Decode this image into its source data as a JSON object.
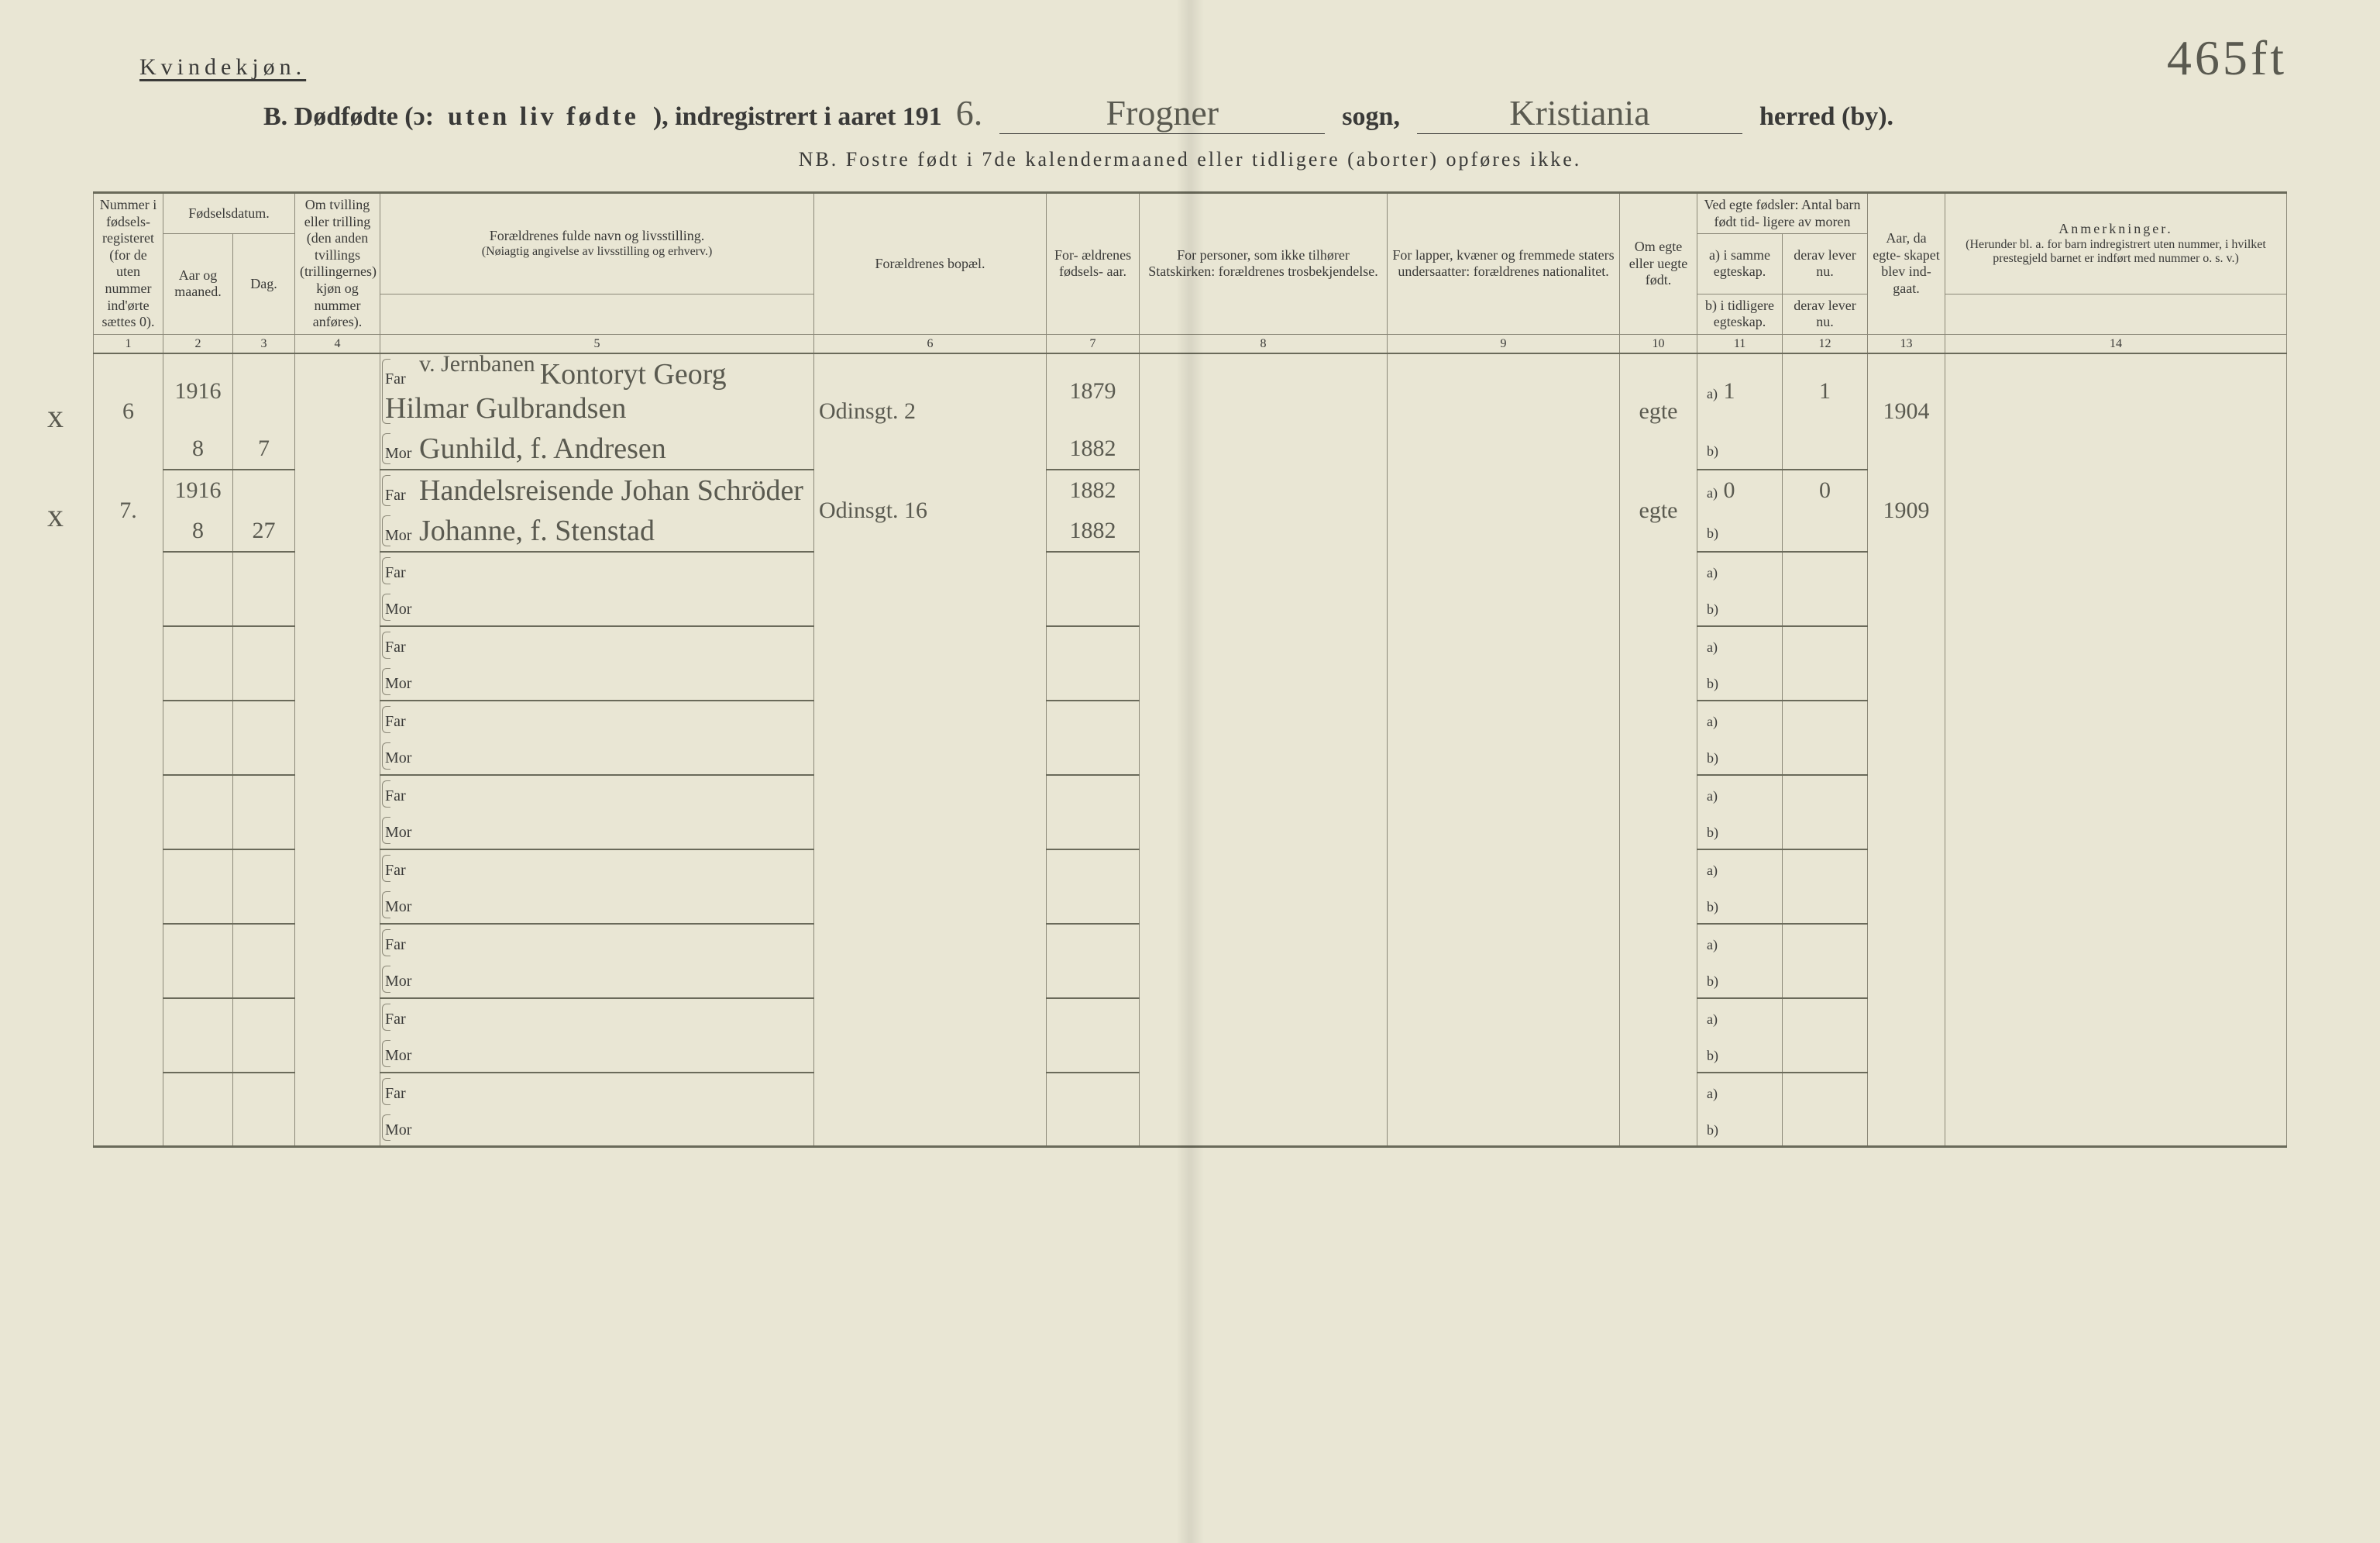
{
  "page": {
    "gender_label": "Kvindekjøn.",
    "page_number_hand": "465ft",
    "title_prefix": "B.  Dødfødte (ɔ:",
    "title_spaced": "uten liv  fødte",
    "title_suffix_a": "), indregistrert i aaret 191",
    "year_suffix": "6.",
    "sogn_value": "Frogner",
    "sogn_label": "sogn,",
    "herred_value": "Kristiania",
    "herred_label": "herred (by).",
    "nb_line": "NB.  Fostre født i 7de kalendermaaned eller tidligere (aborter) opføres ikke."
  },
  "header": {
    "col1": "Nummer i fødsels- registeret (for de uten nummer ind'ørte sættes 0).",
    "col2_top": "Fødselsdatum.",
    "col2a": "Aar og maaned.",
    "col2b": "Dag.",
    "col4": "Om tvilling eller trilling (den anden tvillings (trillingernes) kjøn og nummer anføres).",
    "col5_top": "Forældrenes fulde navn og livsstilling.",
    "col5_sub": "(Nøiagtig angivelse av livsstilling og erhverv.)",
    "col6": "Forældrenes bopæl.",
    "col7": "For- ældrenes fødsels- aar.",
    "col8": "For personer, som ikke tilhører Statskirken: forældrenes trosbekjendelse.",
    "col9": "For lapper, kvæner og fremmede staters undersaatter: forældrenes nationalitet.",
    "col10": "Om egte eller uegte født.",
    "col11_top": "Ved egte fødsler: Antal barn født tid- ligere av moren",
    "col11a": "a) i samme egteskap.",
    "col11a2": "b) i tidligere egteskap.",
    "col12a": "derav lever nu.",
    "col12b": "derav lever nu.",
    "col13": "Aar, da egte- skapet blev ind- gaat.",
    "col14_top": "Anmerkninger.",
    "col14_sub": "(Herunder bl. a. for barn indregistrert uten nummer, i hvilket prestegjeld barnet er indført med nummer o. s. v.)",
    "nums": [
      "1",
      "2",
      "3",
      "4",
      "5",
      "6",
      "7",
      "8",
      "9",
      "10",
      "11",
      "12",
      "13",
      "14"
    ]
  },
  "labels": {
    "far": "Far",
    "mor": "Mor",
    "sub_a": "a)",
    "sub_b": "b)"
  },
  "rows": [
    {
      "margin_mark": "x",
      "num": "6",
      "year": "1916",
      "month": "8",
      "day": "7",
      "far_name_prefix": "v. Jernbanen",
      "far_name": "Kontoryt Georg Hilmar Gulbrandsen",
      "mor_name": "Gunhild, f. Andresen",
      "address": "Odinsgt. 2",
      "far_year": "1879",
      "mor_year": "1882",
      "egte": "egte",
      "children_a": "1",
      "children_a_live": "1",
      "marriage_year": "1904"
    },
    {
      "margin_mark": "x",
      "num": "7.",
      "year": "1916",
      "month": "8",
      "day": "27",
      "far_name": "Handelsreisende Johan Schröder",
      "mor_name": "Johanne, f. Stenstad",
      "address": "Odinsgt. 16",
      "far_year": "1882",
      "mor_year": "1882",
      "egte": "egte",
      "children_a": "0",
      "children_a_live": "0",
      "marriage_year": "1909"
    }
  ],
  "empty_row_count": 8,
  "colors": {
    "paper": "#e9e6d4",
    "ink": "#3a3a38",
    "rule": "#8b8878",
    "handwriting": "#5a5a50"
  }
}
